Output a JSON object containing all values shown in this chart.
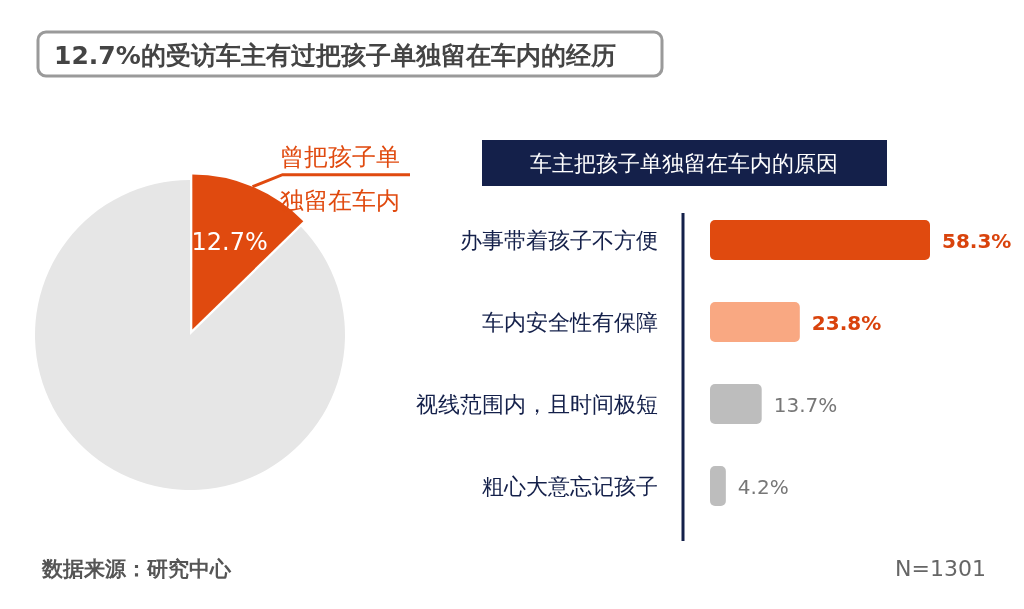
{
  "chart_data": [
    {
      "type": "pie",
      "title": "12.7%的受访车主有过把孩子单独留在车内的经历",
      "categories": [
        "曾把孩子单独留在车内",
        null
      ],
      "values": [
        12.7,
        87.3
      ],
      "colors": [
        "#e04a0f",
        "#e6e6e6"
      ],
      "value_labels": [
        "12.7%",
        null
      ],
      "annotations": [
        "数据来源：研究中心"
      ]
    },
    {
      "type": "bar",
      "orientation": "horizontal",
      "title": "车主把孩子单独留在车内的原因",
      "categories": [
        "办事带着孩子不方便",
        "车内安全性有保障",
        "视线范围内，且时间极短",
        "粗心大意忘记孩子"
      ],
      "values": [
        58.3,
        23.8,
        13.7,
        4.2
      ],
      "colors": [
        "#e04a0f",
        "#f9a882",
        "#bdbdbd",
        "#bdbdbd"
      ],
      "value_labels": [
        "58.3%",
        "23.8%",
        "13.7%",
        "4.2%"
      ],
      "annotations": [
        "N=1301"
      ]
    }
  ]
}
